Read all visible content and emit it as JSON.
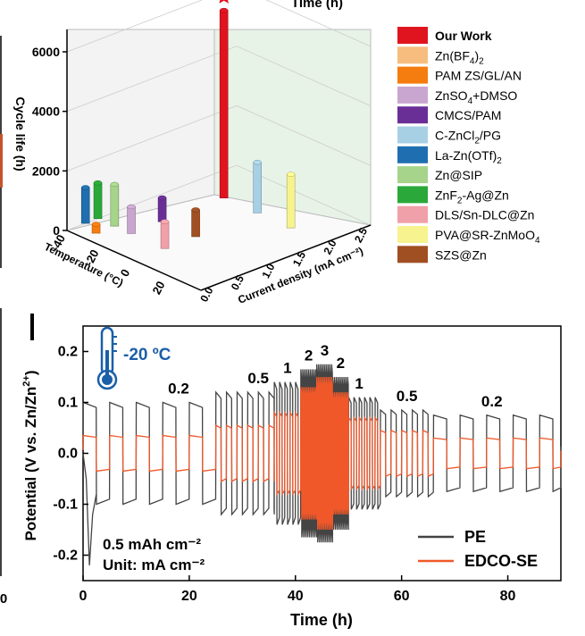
{
  "chart_data": [
    {
      "type": "bar3d",
      "title_fragment": "Time (h)",
      "zlabel": "Cycle life (h)",
      "xlabel": "Temperature (°C)",
      "ylabel": "Current density (mA cm⁻²)",
      "zlim": [
        0,
        7000
      ],
      "zticks": [
        0,
        2000,
        4000,
        6000
      ],
      "xticks": [
        -40,
        -20,
        0,
        20
      ],
      "yticks": [
        "0.0",
        "0.5",
        "1.0",
        "1.5",
        "2.0",
        "2.5"
      ],
      "series": [
        {
          "name": "Our Work",
          "color": "#e0141e",
          "temp": -20,
          "current": 2.0,
          "value": 6300,
          "star": true
        },
        {
          "name": "Zn(BF4)2",
          "color": "#f6bd7f",
          "temp": -30,
          "current": 0.5,
          "value": 1300
        },
        {
          "name": "PAM ZS/GL/AN",
          "color": "#f57c0e",
          "temp": -30,
          "current": 0.2,
          "value": 300
        },
        {
          "name": "ZnSO4+DMSO",
          "color": "#c9a6cf",
          "temp": -20,
          "current": 0.5,
          "value": 900
        },
        {
          "name": "CMCS/PAM",
          "color": "#6a2f97",
          "temp": -20,
          "current": 1.0,
          "value": 800
        },
        {
          "name": "C-ZnCl2/PG",
          "color": "#a8d0e4",
          "temp": 0,
          "current": 2.0,
          "value": 1700
        },
        {
          "name": "La-Zn(OTf)2",
          "color": "#1f6fb0",
          "temp": -40,
          "current": 0.3,
          "value": 1200
        },
        {
          "name": "Zn@SIP",
          "color": "#a6d48a",
          "temp": -30,
          "current": 0.5,
          "value": 1400
        },
        {
          "name": "ZnF2-Ag@Zn",
          "color": "#2ba83a",
          "temp": -40,
          "current": 0.5,
          "value": 1200
        },
        {
          "name": "DLS/Sn-DLC@Zn",
          "color": "#f0a0a8",
          "temp": 0,
          "current": 0.5,
          "value": 900
        },
        {
          "name": "PVA@SR-ZnMoO4",
          "color": "#f7f38e",
          "temp": 20,
          "current": 2.0,
          "value": 1800
        },
        {
          "name": "SZS@Zn",
          "color": "#a04f22",
          "temp": 0,
          "current": 1.0,
          "value": 900
        }
      ],
      "legend": [
        {
          "text": "Our Work",
          "sub": "",
          "tail": "",
          "bold": true
        },
        {
          "text": "Zn(BF",
          "sub": "4",
          "tail": ")",
          "sub2": "2"
        },
        {
          "text": "PAM ZS/GL/AN",
          "sub": "",
          "tail": ""
        },
        {
          "text": "ZnSO",
          "sub": "4",
          "tail": "+DMSO"
        },
        {
          "text": "CMCS/PAM",
          "sub": "",
          "tail": ""
        },
        {
          "text": "C-ZnCl",
          "sub": "2",
          "tail": "/PG"
        },
        {
          "text": "La-Zn(OTf)",
          "sub": "2",
          "tail": ""
        },
        {
          "text": "Zn@SIP",
          "sub": "",
          "tail": ""
        },
        {
          "text": "ZnF",
          "sub": "2",
          "tail": "-Ag@Zn"
        },
        {
          "text": "DLS/Sn-DLC@Zn",
          "sub": "",
          "tail": ""
        },
        {
          "text": "PVA@SR-ZnMoO",
          "sub": "4",
          "tail": ""
        },
        {
          "text": "SZS@Zn",
          "sub": "",
          "tail": ""
        }
      ],
      "left_axis_fragment": {
        "tick": "0"
      }
    },
    {
      "type": "line",
      "xlabel": "Time (h)",
      "ylabel": "Potential (V vs. Zn/Zn2+)",
      "ylabel_parts": {
        "pre": "Potential (V vs. Zn/Zn",
        "sup": "2+",
        "post": ")"
      },
      "xlim": [
        0,
        90
      ],
      "ylim": [
        -0.25,
        0.25
      ],
      "xticks": [
        0,
        20,
        40,
        60,
        80
      ],
      "yticks": [
        -0.2,
        -0.1,
        0.0,
        0.1,
        0.2
      ],
      "ytick_labels": [
        "-0.2",
        "-0.1",
        "0.0",
        "0.1",
        "0.2"
      ],
      "left_fragment_tick": "0",
      "temperature_label": "-20 ºC",
      "annotation_lines": [
        "0.5 mAh cm⁻²",
        "Unit: mA cm⁻²"
      ],
      "rate_labels": [
        {
          "text": "0.2",
          "t": 18
        },
        {
          "text": "0.5",
          "t": 33
        },
        {
          "text": "1",
          "t": 38.5
        },
        {
          "text": "2",
          "t": 42.5
        },
        {
          "text": "3",
          "t": 45.5
        },
        {
          "text": "2",
          "t": 48.5
        },
        {
          "text": "1",
          "t": 52
        },
        {
          "text": "0.5",
          "t": 61
        },
        {
          "text": "0.2",
          "t": 77
        }
      ],
      "segments": [
        {
          "rate": 0.2,
          "t_start": 0,
          "t_end": 25,
          "PE_amp": 0.1,
          "EDCO_amp": 0.035
        },
        {
          "rate": 0.5,
          "t_start": 25,
          "t_end": 36,
          "PE_amp": 0.12,
          "EDCO_amp": 0.055
        },
        {
          "rate": 1,
          "t_start": 36,
          "t_end": 41,
          "PE_amp": 0.14,
          "EDCO_amp": 0.08
        },
        {
          "rate": 2,
          "t_start": 41,
          "t_end": 44,
          "PE_amp": 0.165,
          "EDCO_amp": 0.13
        },
        {
          "rate": 3,
          "t_start": 44,
          "t_end": 47,
          "PE_amp": 0.175,
          "EDCO_amp": 0.15
        },
        {
          "rate": 2,
          "t_start": 47,
          "t_end": 50,
          "PE_amp": 0.15,
          "EDCO_amp": 0.12
        },
        {
          "rate": 1,
          "t_start": 50,
          "t_end": 56,
          "PE_amp": 0.11,
          "EDCO_amp": 0.07
        },
        {
          "rate": 0.5,
          "t_start": 56,
          "t_end": 66,
          "PE_amp": 0.085,
          "EDCO_amp": 0.045
        },
        {
          "rate": 0.2,
          "t_start": 66,
          "t_end": 90,
          "PE_amp": 0.075,
          "EDCO_amp": 0.03
        }
      ],
      "series": [
        {
          "name": "PE",
          "color": "#444444"
        },
        {
          "name": "EDCO-SE",
          "color": "#f0582a"
        }
      ]
    }
  ]
}
